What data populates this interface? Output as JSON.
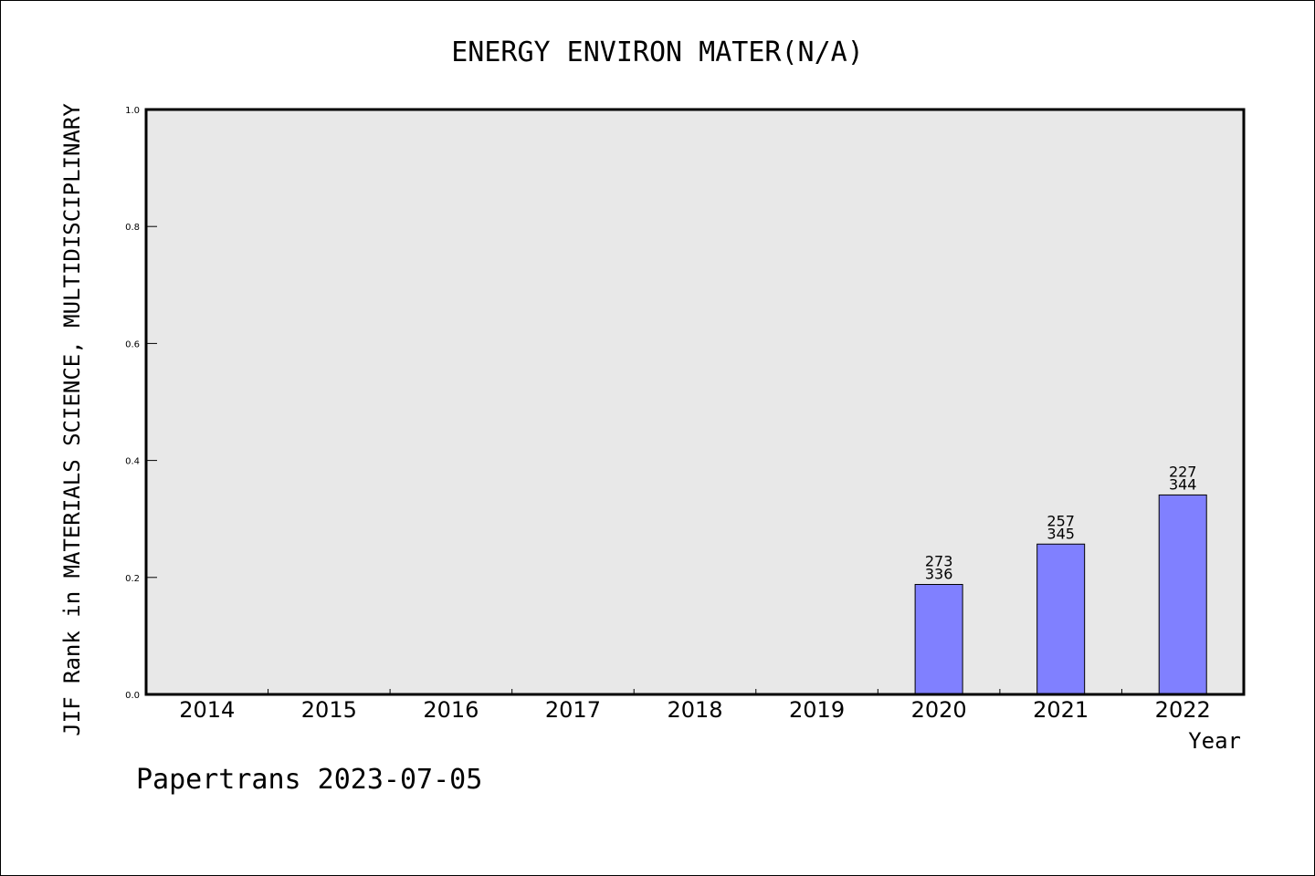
{
  "colors": {
    "plot_background": "#e8e8e8",
    "bar_fill": "#8080ff",
    "bar_stroke": "#000000",
    "axis": "#000000"
  },
  "footer": {
    "text": "Papertrans 2023-07-05"
  },
  "chart_data": {
    "type": "bar",
    "title": "ENERGY ENVIRON MATER(N/A)",
    "xlabel": "Year",
    "ylabel": "JIF Rank in MATERIALS SCIENCE, MULTIDISCIPLINARY",
    "ylim": [
      0,
      1
    ],
    "yticks": [
      "0.0",
      "0.2",
      "0.4",
      "0.6",
      "0.8",
      "1.0"
    ],
    "categories": [
      "2014",
      "2015",
      "2016",
      "2017",
      "2018",
      "2019",
      "2020",
      "2021",
      "2022"
    ],
    "values": [
      null,
      null,
      null,
      null,
      null,
      null,
      0.188,
      0.257,
      0.341
    ],
    "bar_labels": [
      null,
      null,
      null,
      null,
      null,
      null,
      {
        "rank": "273",
        "total": "336"
      },
      {
        "rank": "257",
        "total": "345"
      },
      {
        "rank": "227",
        "total": "344"
      }
    ],
    "grid": false,
    "legend": "none"
  }
}
